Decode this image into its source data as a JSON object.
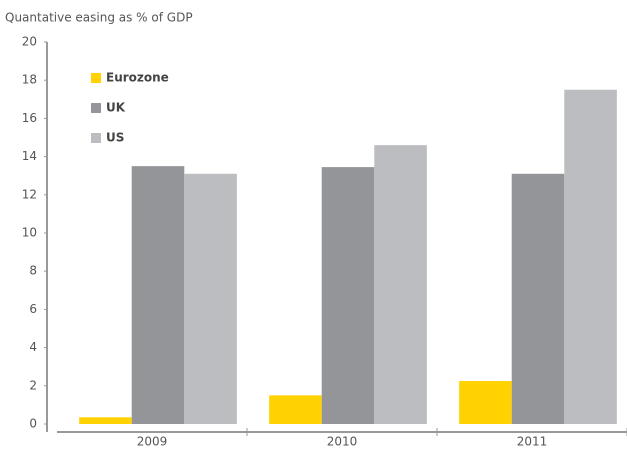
{
  "chart_data": {
    "type": "bar",
    "title": "Quantative easing as % of GDP",
    "categories": [
      "2009",
      "2010",
      "2011"
    ],
    "series": [
      {
        "name": "Eurozone",
        "color": "#ffd200",
        "values": [
          0.35,
          1.5,
          2.25
        ]
      },
      {
        "name": "UK",
        "color": "#939598",
        "values": [
          13.5,
          13.45,
          13.1
        ]
      },
      {
        "name": "US",
        "color": "#bcbdc0",
        "values": [
          13.1,
          14.6,
          17.5
        ]
      }
    ],
    "ylim": [
      0,
      20
    ],
    "yticks": [
      0,
      2,
      4,
      6,
      8,
      10,
      12,
      14,
      16,
      18,
      20
    ],
    "grid": false,
    "legend": "upper left"
  }
}
